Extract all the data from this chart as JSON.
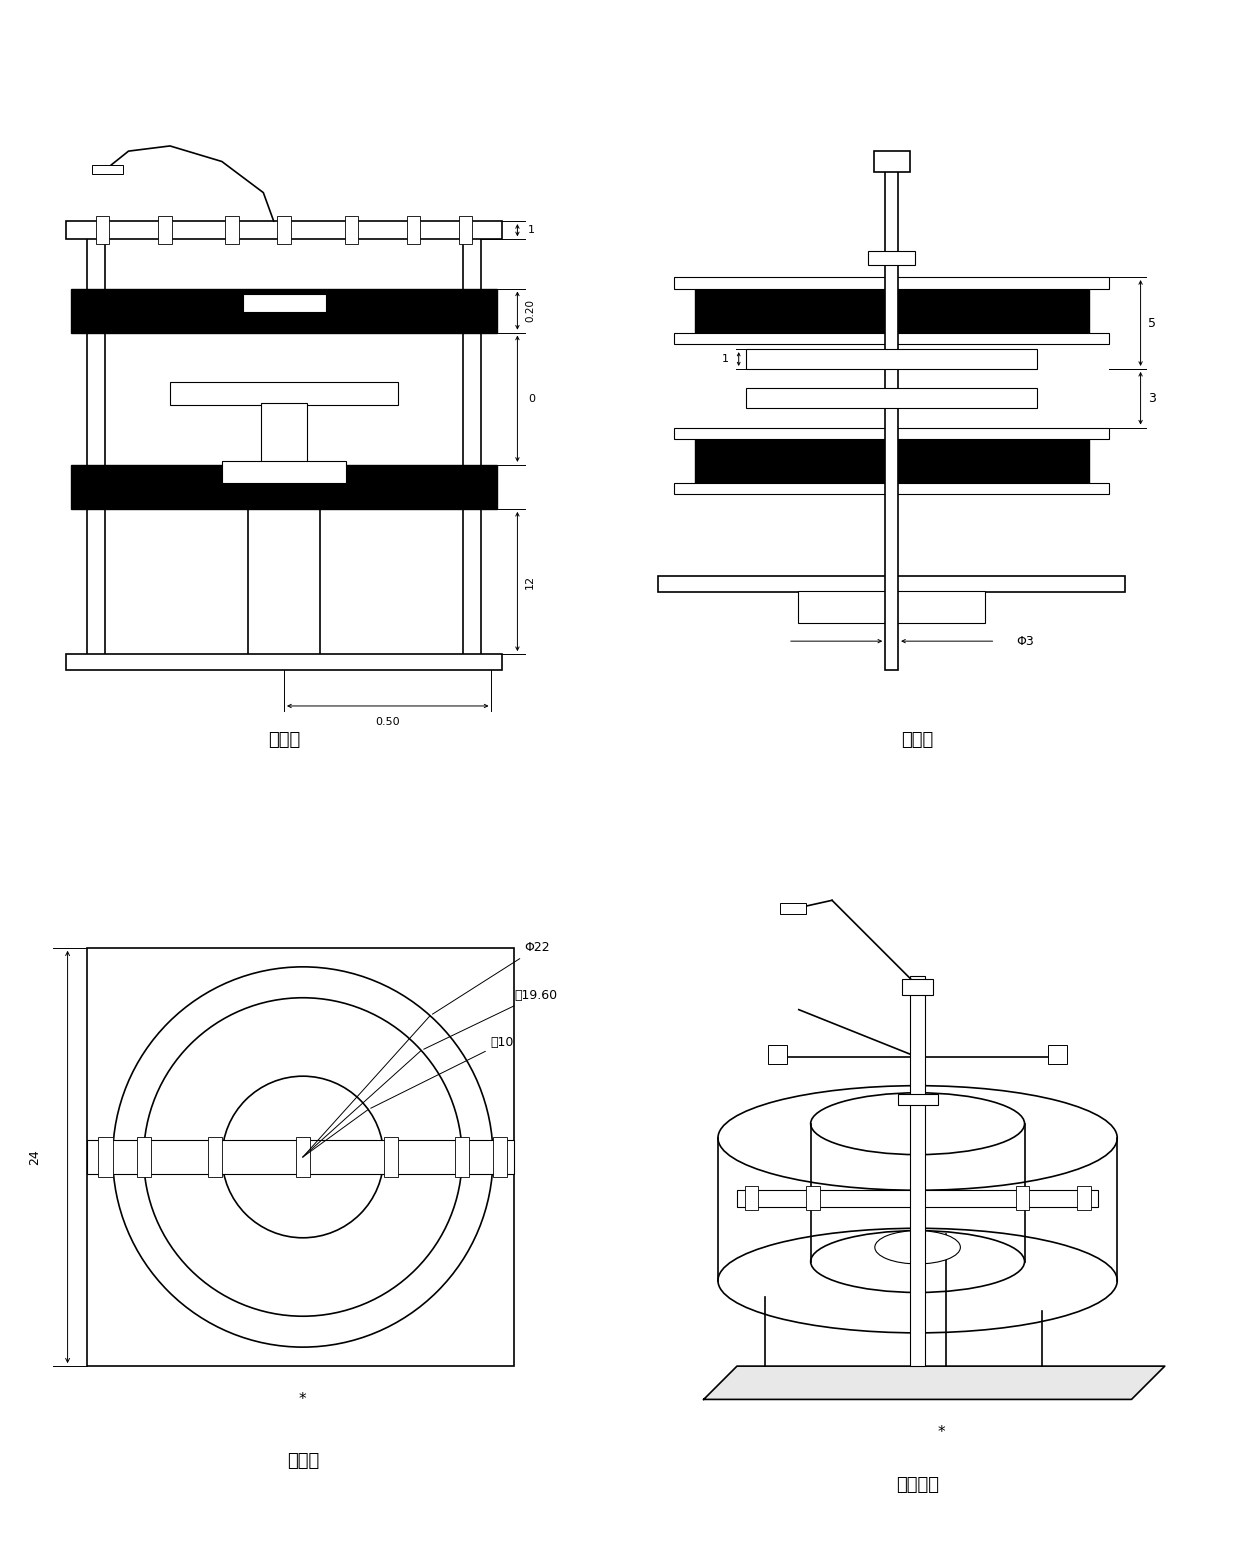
{
  "background_color": "#ffffff",
  "line_color": "#000000",
  "fig_width": 12.4,
  "fig_height": 15.68,
  "labels": {
    "front_view": "前视图",
    "left_view": "左视图",
    "top_view": "俧视图",
    "model_view": "模型视图"
  }
}
